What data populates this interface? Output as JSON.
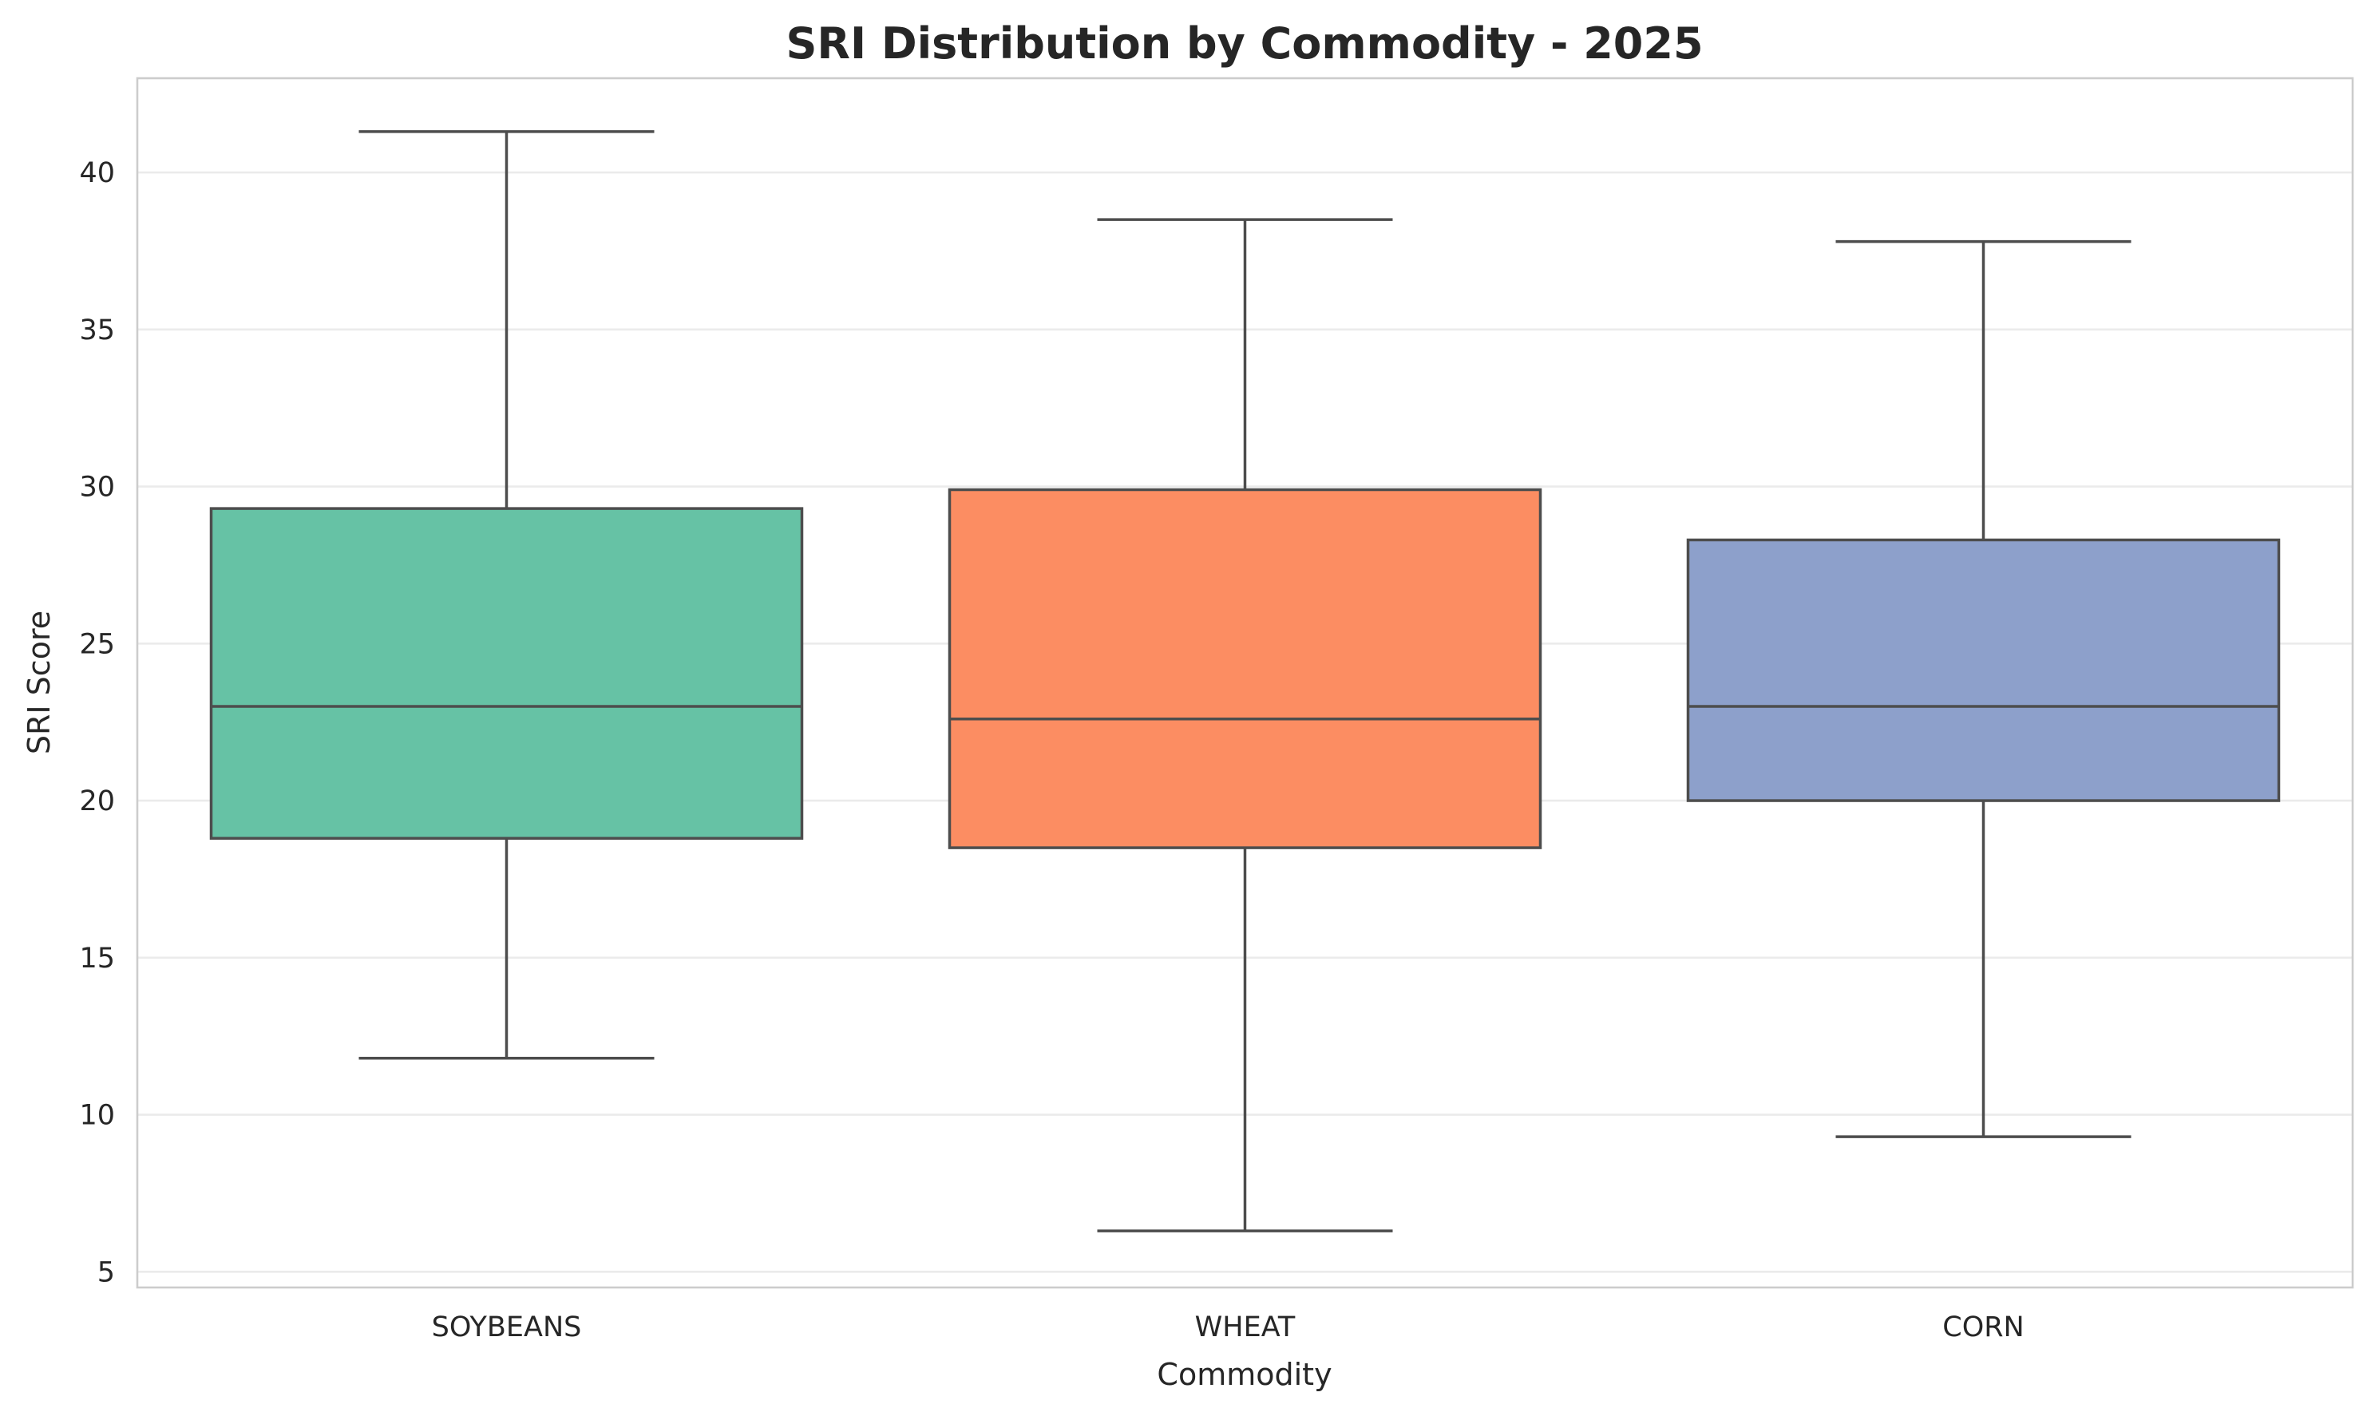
{
  "chart_data": {
    "type": "box",
    "title": "SRI Distribution by Commodity - 2025",
    "xlabel": "Commodity",
    "ylabel": "SRI Score",
    "ylim": [
      4.5,
      43.0
    ],
    "yticks": [
      5,
      10,
      15,
      20,
      25,
      30,
      35,
      40
    ],
    "ytick_labels": [
      "5",
      "10",
      "15",
      "20",
      "25",
      "30",
      "35",
      "40"
    ],
    "grid": "horizontal",
    "categories": [
      "SOYBEANS",
      "WHEAT",
      "CORN"
    ],
    "boxes": [
      {
        "category": "SOYBEANS",
        "whisker_low": 11.8,
        "q1": 18.8,
        "median": 23.0,
        "q3": 29.3,
        "whisker_high": 41.3,
        "color": "#66c2a5"
      },
      {
        "category": "WHEAT",
        "whisker_low": 6.3,
        "q1": 18.5,
        "median": 22.6,
        "q3": 29.9,
        "whisker_high": 38.5,
        "color": "#fc8d62"
      },
      {
        "category": "CORN",
        "whisker_low": 9.3,
        "q1": 20.0,
        "median": 23.0,
        "q3": 28.3,
        "whisker_high": 37.8,
        "color": "#8da0cb"
      }
    ]
  }
}
